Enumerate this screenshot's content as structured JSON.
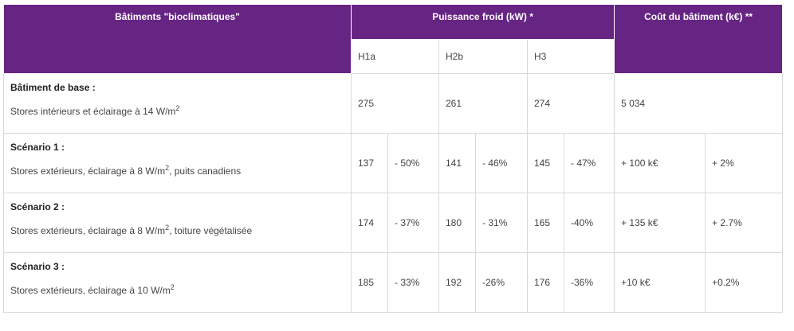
{
  "header": {
    "col1": "Bâtiments \"bioclimatiques\"",
    "col2": "Puissance froid (kW) *",
    "col3": "Coût du bâtiment (k€) **",
    "zones": [
      "H1a",
      "H2b",
      "H3"
    ]
  },
  "rows": [
    {
      "title": "Bâtiment de base :",
      "desc": "Stores intérieurs et éclairage à 14 W/m",
      "sup": "2",
      "desc_after": "",
      "h1a": "275",
      "h1a_pct": "",
      "h2b": "261",
      "h2b_pct": "",
      "h3": "274",
      "h3_pct": "",
      "cost": "5 034",
      "cost_pct": ""
    },
    {
      "title": "Scénario 1 :",
      "desc": "Stores extérieurs, éclairage à 8 W/m",
      "sup": "2",
      "desc_after": ", puits canadiens",
      "h1a": "137",
      "h1a_pct": "- 50%",
      "h2b": "141",
      "h2b_pct": "- 46%",
      "h3": "145",
      "h3_pct": "- 47%",
      "cost": "+ 100 k€",
      "cost_pct": "+ 2%"
    },
    {
      "title": "Scénario 2 :",
      "desc": "Stores extérieurs, éclairage à 8 W/m",
      "sup": "2",
      "desc_after": ", toiture végétalisée",
      "h1a": "174",
      "h1a_pct": "- 37%",
      "h2b": "180",
      "h2b_pct": "- 31%",
      "h3": "165",
      "h3_pct": "-40%",
      "cost": "+ 135 k€",
      "cost_pct": "+ 2.7%"
    },
    {
      "title": "Scénario 3 :",
      "desc": "Stores extérieurs, éclairage à 10 W/m",
      "sup": "2",
      "desc_after": "",
      "h1a": "185",
      "h1a_pct": "- 33%",
      "h2b": "192",
      "h2b_pct": "-26%",
      "h3": "176",
      "h3_pct": "-36%",
      "cost": "+10 k€",
      "cost_pct": "+0.2%"
    }
  ]
}
